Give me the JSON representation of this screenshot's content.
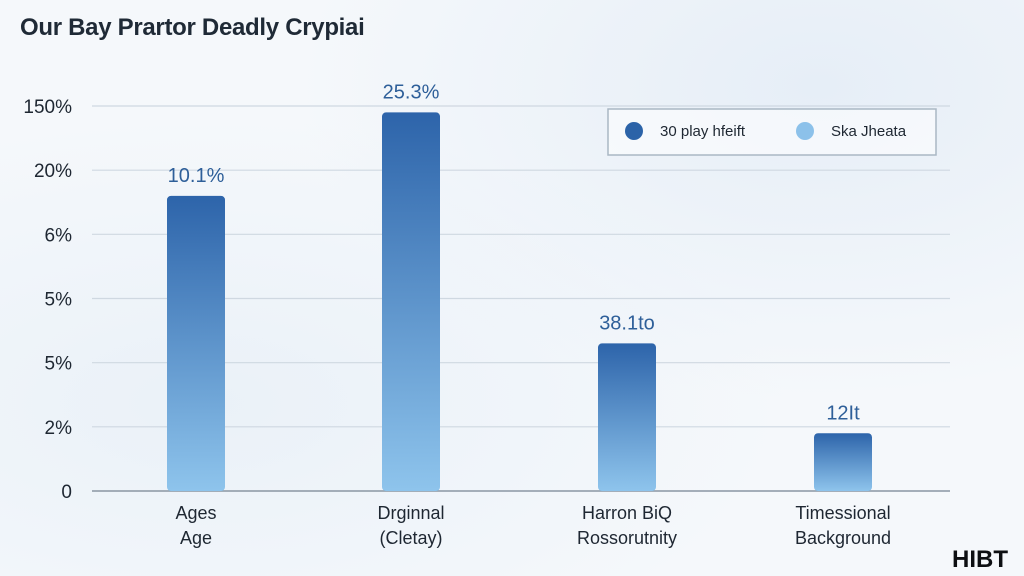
{
  "watermark": "HIBT",
  "chart_data": {
    "type": "bar",
    "title": "Our Bay Prartor Deadly Crypiai",
    "y_ticks": [
      "0",
      "2%",
      "5%",
      "5%",
      "6%",
      "20%",
      "150%"
    ],
    "categories": [
      [
        "Ages",
        "Age"
      ],
      [
        "Drginnal",
        "(Cletay)"
      ],
      [
        "Harron BiQ",
        "Rossorutnity"
      ],
      [
        "Timessional",
        "Background"
      ]
    ],
    "series": [
      {
        "name": "30 play hfeift",
        "values": [
          4.6,
          5.9,
          2.3,
          0.9
        ],
        "labels": [
          "10.1%",
          "25.3%",
          "38.1to",
          "12It"
        ]
      }
    ],
    "legend": {
      "placement": "top-right",
      "entries": [
        {
          "label": "30 play hfeift",
          "color": "#2b63a8"
        },
        {
          "label": "Ska Jheata",
          "color": "#8cc1ea"
        }
      ]
    },
    "bar_color_top": "#2d64aa",
    "bar_color_bottom": "#8ec4ec",
    "grid": true
  }
}
